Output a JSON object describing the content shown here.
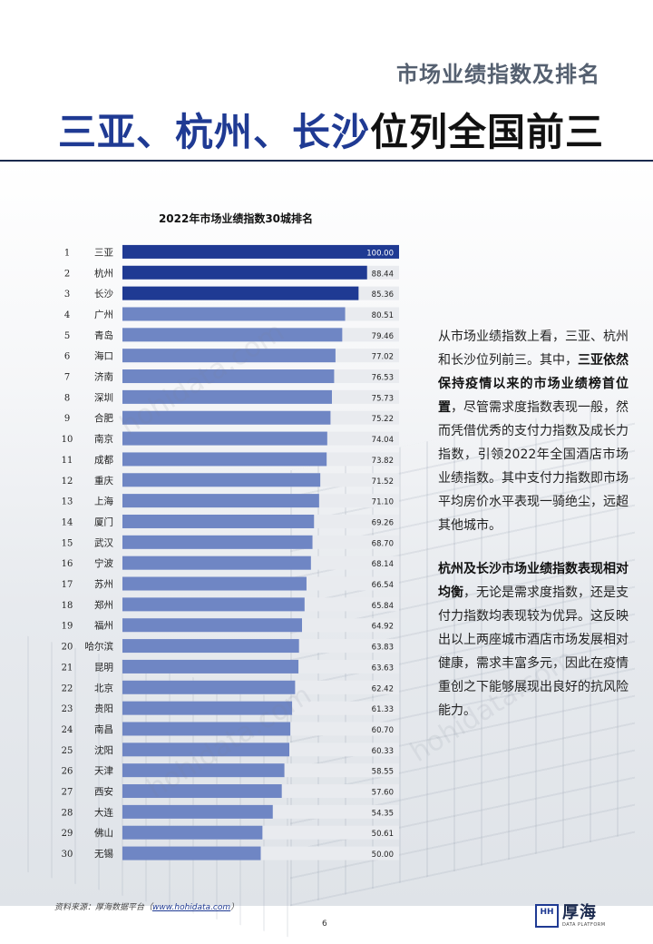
{
  "header": {
    "subtitle": "市场业绩指数及排名",
    "title_blue": "三亚、杭州、长沙",
    "title_dark": "位列全国前三"
  },
  "chart_data": {
    "type": "bar",
    "orientation": "horizontal",
    "title": "2022年市场业绩指数30城排名",
    "xlim": [
      0,
      100
    ],
    "ranks": [
      "1",
      "2",
      "3",
      "4",
      "5",
      "6",
      "7",
      "8",
      "9",
      "10",
      "11",
      "12",
      "13",
      "14",
      "15",
      "16",
      "17",
      "18",
      "19",
      "20",
      "21",
      "22",
      "23",
      "24",
      "25",
      "26",
      "27",
      "28",
      "29",
      "30"
    ],
    "categories": [
      "三亚",
      "杭州",
      "长沙",
      "广州",
      "青岛",
      "海口",
      "济南",
      "深圳",
      "合肥",
      "南京",
      "成都",
      "重庆",
      "上海",
      "厦门",
      "武汉",
      "宁波",
      "苏州",
      "郑州",
      "福州",
      "哈尔滨",
      "昆明",
      "北京",
      "贵阳",
      "南昌",
      "沈阳",
      "天津",
      "西安",
      "大连",
      "佛山",
      "无锡"
    ],
    "values": [
      100.0,
      88.44,
      85.36,
      80.51,
      79.46,
      77.02,
      76.53,
      75.73,
      75.22,
      74.04,
      73.82,
      71.52,
      71.1,
      69.26,
      68.7,
      68.14,
      66.54,
      65.84,
      64.92,
      63.83,
      63.63,
      62.42,
      61.33,
      60.7,
      60.33,
      58.55,
      57.6,
      54.35,
      50.61,
      50.0
    ],
    "labels": [
      "100.00",
      "88.44",
      "85.36",
      "80.51",
      "79.46",
      "77.02",
      "76.53",
      "75.73",
      "75.22",
      "74.04",
      "73.82",
      "71.52",
      "71.10",
      "69.26",
      "68.70",
      "68.14",
      "66.54",
      "65.84",
      "64.92",
      "63.83",
      "63.63",
      "62.42",
      "61.33",
      "60.70",
      "60.33",
      "58.55",
      "57.60",
      "54.35",
      "50.61",
      "50.00"
    ],
    "colors": {
      "top3": "#1f3a93",
      "rest": "#6f86c4",
      "track": "#e9ebef"
    },
    "highlight_count": 3
  },
  "text": {
    "p1_a": "从市场业绩指数上看，三亚、杭州和长沙位列前三。其中，",
    "p1_bold": "三亚依然保持疫情以来的市场业绩榜首位置",
    "p1_b": "，尽管需求度指数表现一般，然而凭借优秀的支付力指数及成长力指数，引领2022年全国酒店市场业绩指数。其中支付力指数即市场平均房价水平表现一骑绝尘，远超其他城市。",
    "p2_bold": "杭州及长沙市场业绩指数表现相对均衡",
    "p2_a": "，无论是需求度指数，还是支付力指数均表现较为优异。这反映出以上两座城市酒店市场发展相对健康，需求丰富多元，因此在疫情重创之下能够展现出良好的抗风险能力。"
  },
  "watermark": "hohidata.com",
  "footer": {
    "source_prefix": "资料来源：厚海数据平台（",
    "source_link": "www.hohidata.com",
    "source_suffix": "）",
    "page": "6",
    "logo_mark": "HH",
    "logo_cn": "厚海",
    "logo_en": "DATA PLATFORM"
  }
}
